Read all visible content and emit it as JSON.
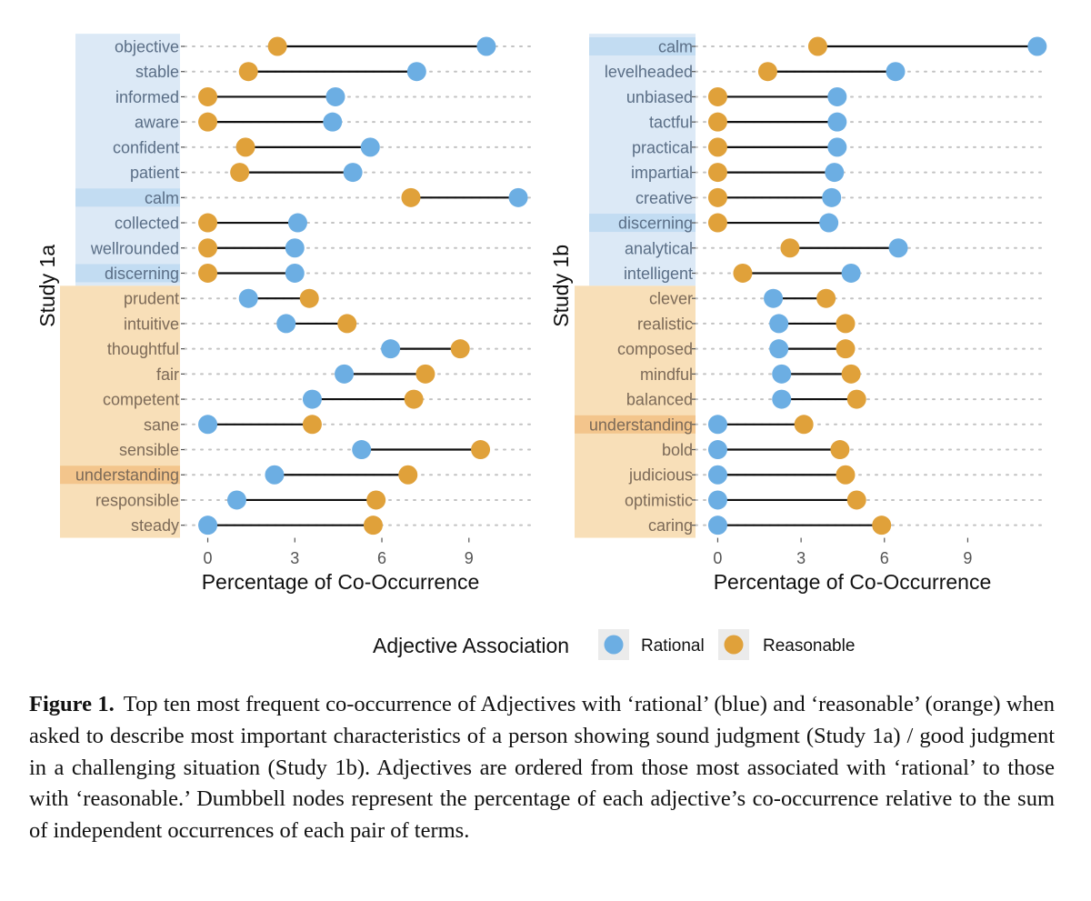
{
  "chart_data": [
    {
      "type": "dumbbell",
      "panel_label": "Study 1a",
      "xlabel": "Percentage of Co-Occurrence",
      "xlim": [
        -0.8,
        11.2
      ],
      "xticks": [
        0,
        3,
        6,
        9
      ],
      "grid": "dotted horizontal",
      "categories": [
        "objective",
        "stable",
        "informed",
        "aware",
        "confident",
        "patient",
        "calm",
        "collected",
        "wellrounded",
        "discerning",
        "prudent",
        "intuitive",
        "thoughtful",
        "fair",
        "competent",
        "sane",
        "sensible",
        "understanding",
        "responsible",
        "steady"
      ],
      "groups": [
        "rational",
        "rational",
        "rational",
        "rational",
        "rational",
        "rational",
        "rational",
        "rational",
        "rational",
        "rational",
        "reasonable",
        "reasonable",
        "reasonable",
        "reasonable",
        "reasonable",
        "reasonable",
        "reasonable",
        "reasonable",
        "reasonable",
        "reasonable"
      ],
      "highlighted": [
        "calm",
        "discerning",
        "understanding"
      ],
      "series": [
        {
          "name": "Rational",
          "values": [
            9.6,
            7.2,
            4.4,
            4.3,
            5.6,
            5.0,
            10.7,
            3.1,
            3.0,
            3.0,
            1.4,
            2.7,
            6.3,
            4.7,
            3.6,
            0,
            5.3,
            2.3,
            1.0,
            0
          ]
        },
        {
          "name": "Reasonable",
          "values": [
            2.4,
            1.4,
            0,
            0,
            1.3,
            1.1,
            7.0,
            0,
            0,
            0,
            3.5,
            4.8,
            8.7,
            7.5,
            7.1,
            3.6,
            9.4,
            6.9,
            5.8,
            5.7
          ]
        }
      ]
    },
    {
      "type": "dumbbell",
      "panel_label": "Study 1b",
      "xlabel": "Percentage of Co-Occurrence",
      "xlim": [
        -0.8,
        11.8
      ],
      "xticks": [
        0,
        3,
        6,
        9
      ],
      "grid": "dotted horizontal",
      "categories": [
        "calm",
        "levelheaded",
        "unbiased",
        "tactful",
        "practical",
        "impartial",
        "creative",
        "discerning",
        "analytical",
        "intelligent",
        "clever",
        "realistic",
        "composed",
        "mindful",
        "balanced",
        "understanding",
        "bold",
        "judicious",
        "optimistic",
        "caring"
      ],
      "groups": [
        "rational",
        "rational",
        "rational",
        "rational",
        "rational",
        "rational",
        "rational",
        "rational",
        "rational",
        "rational",
        "reasonable",
        "reasonable",
        "reasonable",
        "reasonable",
        "reasonable",
        "reasonable",
        "reasonable",
        "reasonable",
        "reasonable",
        "reasonable"
      ],
      "highlighted": [
        "calm",
        "discerning",
        "understanding"
      ],
      "series": [
        {
          "name": "Rational",
          "values": [
            11.5,
            6.4,
            4.3,
            4.3,
            4.3,
            4.2,
            4.1,
            4.0,
            6.5,
            4.8,
            2.0,
            2.2,
            2.2,
            2.3,
            2.3,
            0,
            0,
            0,
            0,
            0
          ]
        },
        {
          "name": "Reasonable",
          "values": [
            3.6,
            1.8,
            0,
            0,
            0,
            0,
            0,
            0,
            2.6,
            0.9,
            3.9,
            4.6,
            4.6,
            4.8,
            5.0,
            3.1,
            4.4,
            4.6,
            5.0,
            5.9
          ]
        }
      ]
    }
  ],
  "legend": {
    "title": "Adjective Association",
    "items": [
      {
        "label": "Rational",
        "color": "#6caee3"
      },
      {
        "label": "Reasonable",
        "color": "#e0a13a"
      }
    ]
  },
  "colors": {
    "rational": "#6caee3",
    "reasonable": "#e0a13a",
    "rational_band": "#dce9f6",
    "reasonable_band": "#f8dfb8",
    "rational_highlight": "#c2dcf2",
    "reasonable_highlight": "#f3c58c",
    "rational_label": "#5a6e86",
    "reasonable_label": "#7c6a58"
  },
  "caption": {
    "label": "Figure 1.",
    "text": "Top ten most frequent co-occurrence of Adjectives with ‘rational’ (blue) and ‘reasonable’ (orange) when asked to describe most important characteristics of a person showing sound judgment (Study 1a) / good judgment in a challenging situation (Study 1b). Adjectives are ordered from those most associated with ‘rational’ to those with ‘reasonable.’ Dumbbell nodes represent the percentage of each adjective’s co-occurrence relative to the sum of independent occurrences of each pair of terms."
  }
}
